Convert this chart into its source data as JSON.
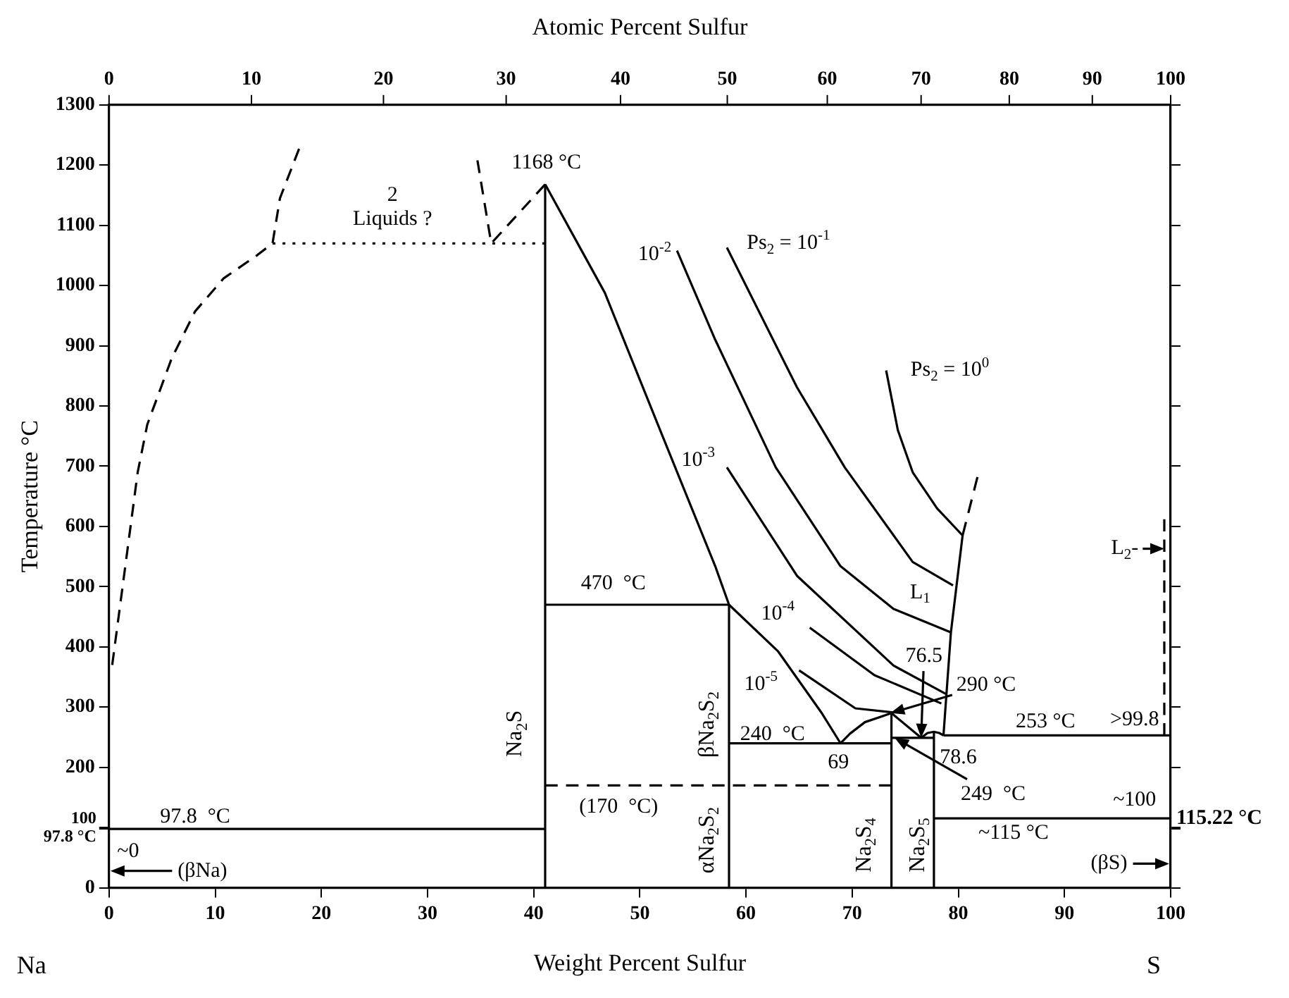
{
  "chart_data": {
    "type": "line",
    "xlabel": "Weight Percent Sulfur",
    "x2label": "Atomic Percent Sulfur",
    "ylabel": "Temperature °C",
    "marker": "none",
    "xlim": [
      0,
      100
    ],
    "xticks": [
      0,
      10,
      20,
      30,
      40,
      50,
      60,
      70,
      80,
      90,
      100
    ],
    "ylim": [
      0,
      1300
    ],
    "yticks": [
      0,
      {
        "value": 97.8,
        "label": "97.8 °C"
      },
      100,
      200,
      300,
      400,
      500,
      600,
      700,
      800,
      900,
      1000,
      1100,
      1200,
      1300
    ],
    "series": [
      {
        "line_style": "dashed",
        "color": "#000000",
        "x": [
          0.3,
          1.3,
          2.7,
          3.6,
          5.9,
          8.1,
          10.8,
          14.0,
          15.4,
          16.1,
          17.9
        ],
        "values": [
          370,
          503,
          690,
          769,
          879,
          957,
          1012,
          1051,
          1070,
          1145,
          1227
        ]
      },
      {
        "line_style": "dashed",
        "color": "#000000",
        "x": [
          34.7,
          36.0,
          41.08
        ],
        "values": [
          1208,
          1070,
          1168
        ]
      },
      {
        "line_style": "dotted",
        "color": "#000000",
        "x": [
          15.4,
          41.08
        ],
        "values": [
          1070,
          1070
        ]
      },
      {
        "line_style": "solid",
        "color": "#000000",
        "x": [
          41.08,
          41.08
        ],
        "values": [
          0,
          1168
        ]
      },
      {
        "line_style": "solid",
        "color": "#000000",
        "x": [
          41.08,
          46.7,
          52,
          57.1,
          58.4,
          63.0,
          67.1,
          68.9
        ],
        "values": [
          1168,
          988,
          756,
          534,
          470,
          393,
          291,
          240
        ]
      },
      {
        "line_style": "solid",
        "color": "#000000",
        "x": [
          0,
          41.08
        ],
        "values": [
          97.8,
          97.8
        ]
      },
      {
        "line_style": "solid",
        "color": "#000000",
        "x": [
          41.08,
          58.4
        ],
        "values": [
          470,
          470
        ]
      },
      {
        "line_style": "solid",
        "color": "#000000",
        "x": [
          58.4,
          58.4
        ],
        "values": [
          0,
          470
        ]
      },
      {
        "line_style": "dashed",
        "color": "#000000",
        "x": [
          41.08,
          73.7
        ],
        "values": [
          170,
          170
        ]
      },
      {
        "line_style": "solid",
        "color": "#000000",
        "x": [
          58.4,
          73.7
        ],
        "values": [
          240,
          240
        ]
      },
      {
        "line_style": "solid",
        "color": "#000000",
        "x": [
          68.9,
          69.8,
          71.2,
          73.7
        ],
        "values": [
          240,
          256,
          275,
          290
        ]
      },
      {
        "line_style": "solid",
        "color": "#000000",
        "x": [
          73.7,
          73.7
        ],
        "values": [
          0,
          290
        ]
      },
      {
        "line_style": "solid",
        "color": "#000000",
        "x": [
          73.7,
          76.5
        ],
        "values": [
          290,
          249
        ]
      },
      {
        "line_style": "solid",
        "color": "#000000",
        "x": [
          73.7,
          77.7
        ],
        "values": [
          249,
          249
        ]
      },
      {
        "line_style": "solid",
        "color": "#000000",
        "x": [
          76.5,
          77.1,
          77.7,
          78.2,
          78.6
        ],
        "values": [
          249,
          257,
          259,
          257,
          253
        ]
      },
      {
        "line_style": "solid",
        "color": "#000000",
        "x": [
          77.7,
          77.7
        ],
        "values": [
          0,
          259
        ]
      },
      {
        "line_style": "solid",
        "color": "#000000",
        "x": [
          78.6,
          100
        ],
        "values": [
          253,
          253
        ]
      },
      {
        "line_style": "solid",
        "color": "#000000",
        "x": [
          77.7,
          100
        ],
        "values": [
          115.22,
          115.22
        ]
      },
      {
        "line_style": "solid",
        "color": "#000000",
        "x": [
          78.6,
          79.3,
          80.4
        ],
        "values": [
          253,
          424,
          585
        ]
      },
      {
        "line_style": "dashed",
        "color": "#000000",
        "x": [
          80.4,
          81.8
        ],
        "values": [
          585,
          682
        ]
      },
      {
        "line_style": "solid",
        "color": "#000000",
        "x": [
          73.2,
          74.3,
          75.7,
          78,
          80.4
        ],
        "values": [
          859,
          760,
          690,
          630,
          585
        ]
      },
      {
        "line_style": "solid",
        "color": "#000000",
        "x": [
          58.2,
          64.8,
          69.3,
          75.7,
          79.5
        ],
        "values": [
          1063,
          831,
          698,
          541,
          502
        ]
      },
      {
        "line_style": "solid",
        "color": "#000000",
        "x": [
          53.5,
          57.1,
          62.8,
          68.9,
          73.9,
          79.3
        ],
        "values": [
          1058,
          910,
          698,
          534,
          463,
          424
        ]
      },
      {
        "line_style": "solid",
        "color": "#000000",
        "x": [
          58.2,
          64.8,
          73.9,
          78.8
        ],
        "values": [
          698,
          518,
          369,
          322
        ]
      },
      {
        "line_style": "solid",
        "color": "#000000",
        "x": [
          66.0,
          72.1,
          78.4
        ],
        "values": [
          432,
          353,
          306
        ]
      },
      {
        "line_style": "solid",
        "color": "#000000",
        "x": [
          65.0,
          70.3,
          73.9
        ],
        "values": [
          361,
          298,
          291
        ]
      },
      {
        "line_style": "dashed",
        "color": "#000000",
        "x": [
          99.4,
          99.4
        ],
        "values": [
          253,
          612
        ]
      }
    ],
    "annotations": [
      "1168 °C",
      "2\nLiquids ?",
      "10$^{-2}$",
      "Ps$_{2}$ = 10$^{-1}$",
      "Ps$_{2}$ = 10$^{0}$",
      "10$^{-3}$",
      "L$_{1}$",
      "10$^{-4}$",
      "10$^{-5}$",
      {
        "text": "76.5",
        "x": 76.5,
        "y": 249
      },
      {
        "text": "290 °C",
        "x": 73.6,
        "y": 290
      },
      "240  °C",
      "69",
      "78.6",
      {
        "text": "249  °C",
        "x": 74,
        "y": 249
      },
      "253 °C",
      ">99.8",
      "~100",
      "~115 °C",
      "(βS)",
      {
        "text": "L$_{2}$-",
        "x": 99.4,
        "y": 563
      },
      "470  °C",
      "(170  °C)",
      "97.8  °C",
      "~0",
      "(βNa)",
      "Na$_{2}$S",
      "βNa$_{2}$S$_{2}$",
      "αNa$_{2}$S$_{2}$",
      "Na$_{2}$S$_{4}$",
      "Na$_{2}$S$_{5}$",
      "Na",
      "S",
      "0",
      "10",
      "20",
      "30",
      "40",
      "50",
      "60",
      "70",
      "80",
      "90",
      "100",
      "115.22 °C"
    ]
  }
}
